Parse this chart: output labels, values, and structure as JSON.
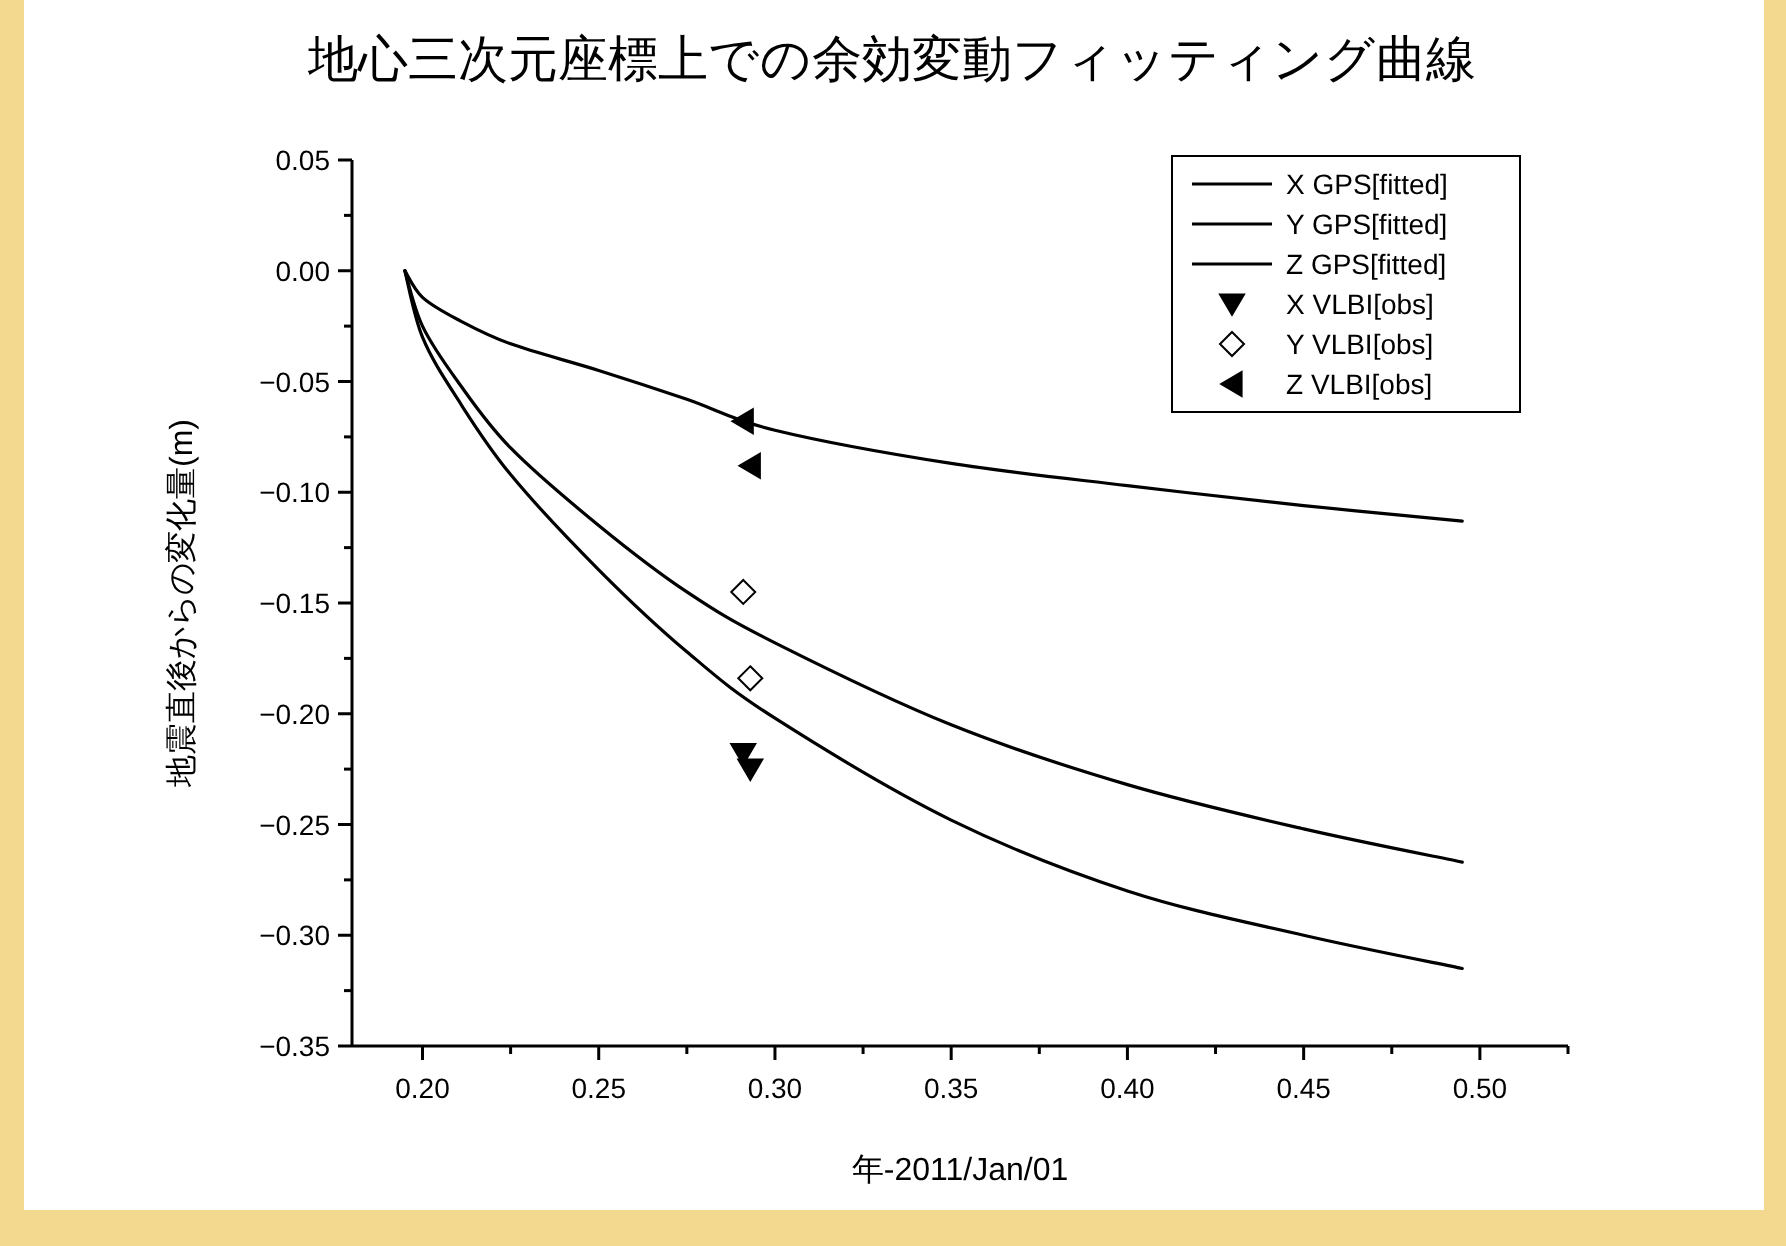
{
  "chart_data": {
    "type": "line",
    "title": "地心三次元座標上での余効変動フィッティング曲線",
    "xlabel": "年-2011/Jan/01",
    "ylabel": "地震直後からの変化量(m)",
    "xlim": [
      0.18,
      0.525
    ],
    "ylim": [
      -0.35,
      0.05
    ],
    "xticks": [
      {
        "value": 0.2,
        "label": "0.20"
      },
      {
        "value": 0.25,
        "label": "0.25"
      },
      {
        "value": 0.3,
        "label": "0.30"
      },
      {
        "value": 0.35,
        "label": "0.35"
      },
      {
        "value": 0.4,
        "label": "0.40"
      },
      {
        "value": 0.45,
        "label": "0.45"
      },
      {
        "value": 0.5,
        "label": "0.50"
      }
    ],
    "yticks": [
      {
        "value": -0.35,
        "label": "−0.35"
      },
      {
        "value": -0.3,
        "label": "−0.30"
      },
      {
        "value": -0.25,
        "label": "−0.25"
      },
      {
        "value": -0.2,
        "label": "−0.20"
      },
      {
        "value": -0.15,
        "label": "−0.15"
      },
      {
        "value": -0.1,
        "label": "−0.10"
      },
      {
        "value": -0.05,
        "label": "−0.05"
      },
      {
        "value": 0,
        "label": "0.00"
      },
      {
        "value": 0.05,
        "label": "0.05"
      }
    ],
    "grid": false,
    "legend": "top right",
    "series": [
      {
        "name": "X GPS[fitted]",
        "type": "line",
        "color": "#000000",
        "marker": "none",
        "line_style": "solid",
        "x": [
          0.195,
          0.2,
          0.21,
          0.225,
          0.25,
          0.275,
          0.3,
          0.35,
          0.4,
          0.45,
          0.495
        ],
        "values": [
          0,
          -0.03,
          -0.058,
          -0.092,
          -0.135,
          -0.172,
          -0.202,
          -0.248,
          -0.28,
          -0.3,
          -0.315
        ]
      },
      {
        "name": "Y GPS[fitted]",
        "type": "line",
        "color": "#000000",
        "marker": "none",
        "line_style": "solid",
        "x": [
          0.195,
          0.2,
          0.21,
          0.225,
          0.25,
          0.275,
          0.3,
          0.35,
          0.4,
          0.45,
          0.495
        ],
        "values": [
          0,
          -0.025,
          -0.05,
          -0.08,
          -0.115,
          -0.145,
          -0.168,
          -0.205,
          -0.232,
          -0.252,
          -0.267
        ]
      },
      {
        "name": "Z GPS[fitted]",
        "type": "line",
        "color": "#000000",
        "marker": "none",
        "line_style": "solid",
        "x": [
          0.195,
          0.2,
          0.21,
          0.225,
          0.25,
          0.275,
          0.3,
          0.35,
          0.4,
          0.45,
          0.495
        ],
        "values": [
          0,
          -0.012,
          -0.022,
          -0.033,
          -0.045,
          -0.058,
          -0.072,
          -0.087,
          -0.097,
          -0.106,
          -0.113
        ]
      },
      {
        "name": "X VLBI[obs]",
        "type": "scatter",
        "color": "#000000",
        "marker": "triangle-down",
        "x": [
          0.291,
          0.293
        ],
        "values": [
          -0.218,
          -0.225
        ]
      },
      {
        "name": "Y VLBI[obs]",
        "type": "scatter",
        "color": "#000000",
        "marker": "diamond",
        "x": [
          0.291,
          0.293
        ],
        "values": [
          -0.145,
          -0.184
        ]
      },
      {
        "name": "Z VLBI[obs]",
        "type": "scatter",
        "color": "#000000",
        "marker": "triangle-left",
        "x": [
          0.291,
          0.293
        ],
        "values": [
          -0.068,
          -0.088
        ]
      }
    ]
  }
}
